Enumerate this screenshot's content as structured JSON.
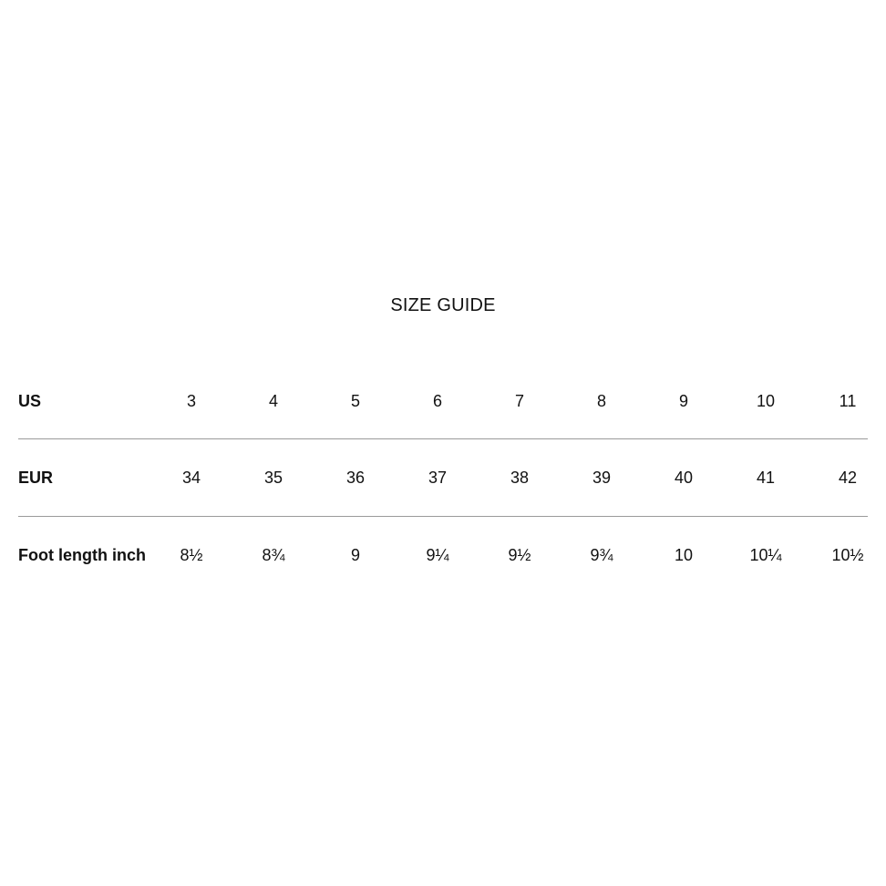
{
  "title": "SIZE GUIDE",
  "rows": [
    {
      "label": "US",
      "values": [
        "3",
        "4",
        "5",
        "6",
        "7",
        "8",
        "9",
        "10",
        "11"
      ]
    },
    {
      "label": "EUR",
      "values": [
        "34",
        "35",
        "36",
        "37",
        "38",
        "39",
        "40",
        "41",
        "42"
      ]
    },
    {
      "label": "Foot length inch",
      "values": [
        "8½",
        "8¾",
        "9",
        "9¼",
        "9½",
        "9¾",
        "10",
        "10¼",
        "10½"
      ]
    }
  ],
  "colors": {
    "text": "#111111",
    "divider": "#9a9a9a",
    "background": "#ffffff"
  }
}
